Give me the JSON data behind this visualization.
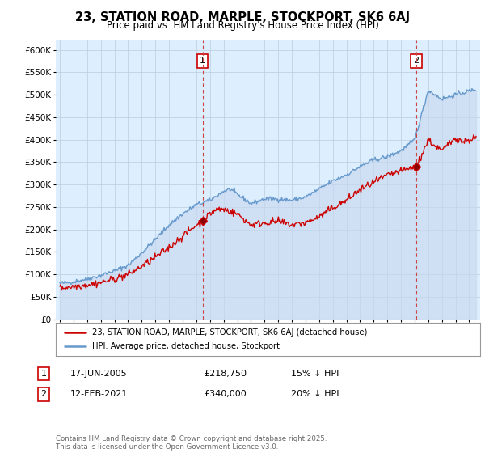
{
  "title": "23, STATION ROAD, MARPLE, STOCKPORT, SK6 6AJ",
  "subtitle": "Price paid vs. HM Land Registry's House Price Index (HPI)",
  "ylim": [
    0,
    620000
  ],
  "yticks": [
    0,
    50000,
    100000,
    150000,
    200000,
    250000,
    300000,
    350000,
    400000,
    450000,
    500000,
    550000,
    600000
  ],
  "ytick_labels": [
    "£0",
    "£50K",
    "£100K",
    "£150K",
    "£200K",
    "£250K",
    "£300K",
    "£350K",
    "£400K",
    "£450K",
    "£500K",
    "£550K",
    "£600K"
  ],
  "background_color": "#ffffff",
  "plot_bg_color": "#ddeeff",
  "grid_color": "#bbccdd",
  "hpi_color": "#6699cc",
  "hpi_fill_color": "#aabbdd",
  "price_color": "#cc0000",
  "marker1_x": 2005.46,
  "marker2_x": 2021.12,
  "marker1_price": 218750,
  "marker2_price": 340000,
  "legend_entry1": "23, STATION ROAD, MARPLE, STOCKPORT, SK6 6AJ (detached house)",
  "legend_entry2": "HPI: Average price, detached house, Stockport",
  "table_row1": [
    "1",
    "17-JUN-2005",
    "£218,750",
    "15% ↓ HPI"
  ],
  "table_row2": [
    "2",
    "12-FEB-2021",
    "£340,000",
    "20% ↓ HPI"
  ],
  "footer": "Contains HM Land Registry data © Crown copyright and database right 2025.\nThis data is licensed under the Open Government Licence v3.0."
}
